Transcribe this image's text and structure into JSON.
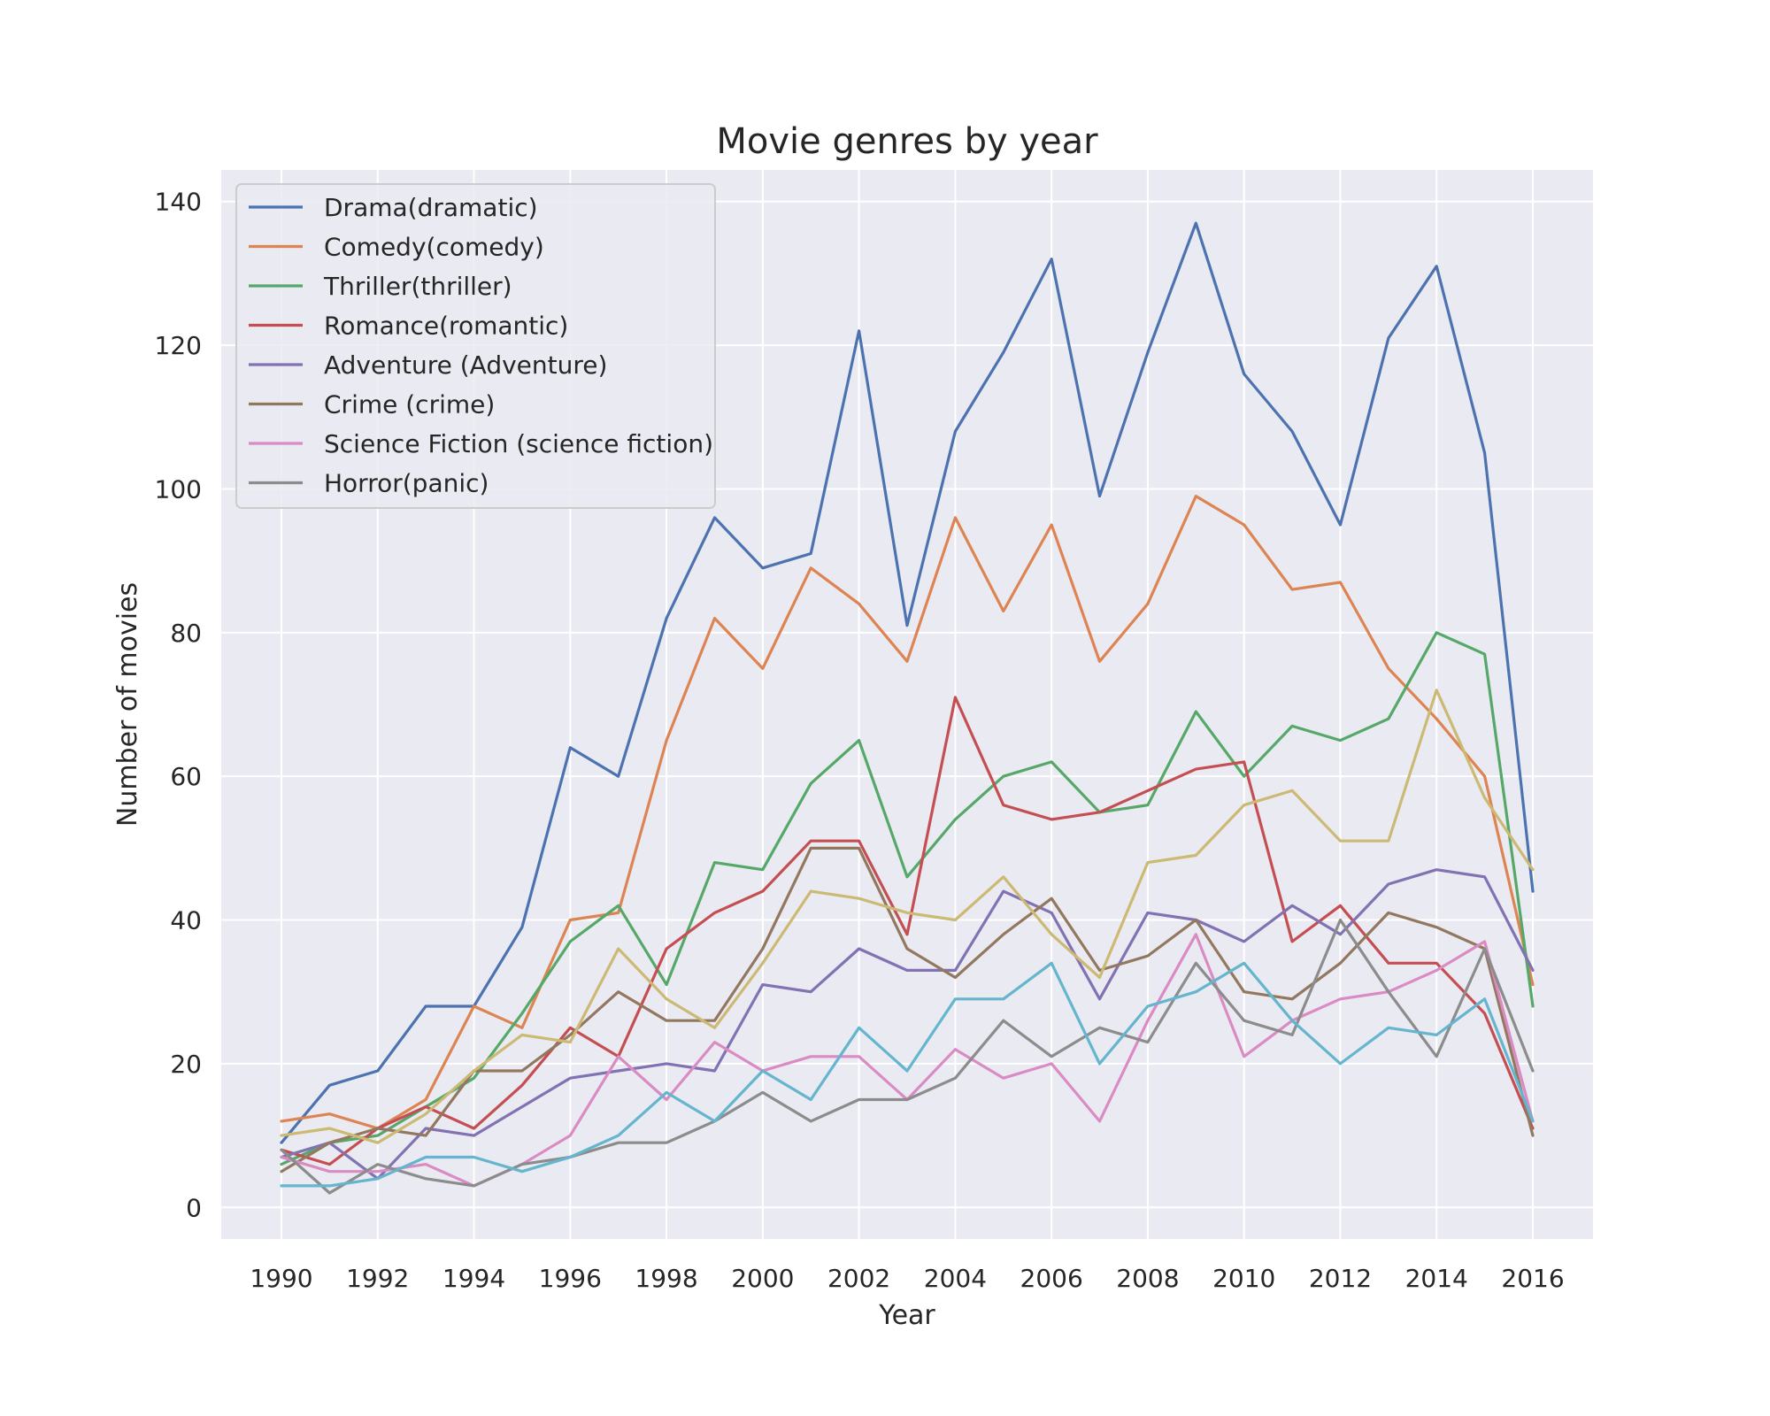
{
  "chart_data": {
    "type": "line",
    "title": "Movie genres by year",
    "xlabel": "Year",
    "ylabel": "Number of movies",
    "xlim": [
      1988.75,
      2017.25
    ],
    "ylim": [
      -4.4,
      144.4
    ],
    "x_ticks": [
      1990,
      1992,
      1994,
      1996,
      1998,
      2000,
      2002,
      2004,
      2006,
      2008,
      2010,
      2012,
      2014,
      2016
    ],
    "y_ticks": [
      0,
      20,
      40,
      60,
      80,
      100,
      120,
      140
    ],
    "grid": true,
    "legend_placement": "upper-left",
    "x": [
      1990,
      1991,
      1992,
      1993,
      1994,
      1995,
      1996,
      1997,
      1998,
      1999,
      2000,
      2001,
      2002,
      2003,
      2004,
      2005,
      2006,
      2007,
      2008,
      2009,
      2010,
      2011,
      2012,
      2013,
      2014,
      2015,
      2016
    ],
    "series": [
      {
        "name": "Drama(dramatic)",
        "color": "#4c72b0",
        "in_legend": true,
        "values": [
          9,
          17,
          19,
          28,
          28,
          39,
          64,
          60,
          82,
          96,
          89,
          91,
          122,
          81,
          108,
          119,
          132,
          99,
          119,
          137,
          116,
          108,
          95,
          121,
          131,
          105,
          44
        ]
      },
      {
        "name": "Comedy(comedy)",
        "color": "#dd8452",
        "in_legend": true,
        "values": [
          12,
          13,
          11,
          15,
          28,
          25,
          40,
          41,
          65,
          82,
          75,
          89,
          84,
          76,
          96,
          83,
          95,
          76,
          84,
          99,
          95,
          86,
          87,
          75,
          68,
          60,
          31
        ]
      },
      {
        "name": "Thriller(thriller)",
        "color": "#55a868",
        "in_legend": true,
        "values": [
          6,
          9,
          10,
          14,
          18,
          27,
          37,
          42,
          31,
          48,
          47,
          59,
          65,
          46,
          54,
          60,
          62,
          55,
          56,
          69,
          60,
          67,
          65,
          68,
          80,
          77,
          28
        ]
      },
      {
        "name": "Romance(romantic)",
        "color": "#c44e52",
        "in_legend": true,
        "values": [
          8,
          6,
          11,
          14,
          11,
          17,
          25,
          21,
          36,
          41,
          44,
          51,
          51,
          38,
          71,
          56,
          54,
          55,
          58,
          61,
          62,
          37,
          42,
          34,
          34,
          27,
          11
        ]
      },
      {
        "name": "Adventure (Adventure)",
        "color": "#8172b3",
        "in_legend": true,
        "values": [
          7,
          9,
          4,
          11,
          10,
          14,
          18,
          19,
          20,
          19,
          31,
          30,
          36,
          33,
          33,
          44,
          41,
          29,
          41,
          40,
          37,
          42,
          38,
          45,
          47,
          46,
          33
        ]
      },
      {
        "name": "Crime (crime)",
        "color": "#937860",
        "in_legend": true,
        "values": [
          5,
          9,
          11,
          10,
          19,
          19,
          24,
          30,
          26,
          26,
          36,
          50,
          50,
          36,
          32,
          38,
          43,
          33,
          35,
          40,
          30,
          29,
          34,
          41,
          39,
          36,
          10
        ]
      },
      {
        "name": "Science Fiction (science fiction)",
        "color": "#da8bc3",
        "in_legend": true,
        "values": [
          7,
          5,
          5,
          6,
          3,
          6,
          10,
          21,
          15,
          23,
          19,
          21,
          21,
          15,
          22,
          18,
          20,
          12,
          26,
          38,
          21,
          26,
          29,
          30,
          33,
          37,
          12
        ]
      },
      {
        "name": "Horror(panic)",
        "color": "#8c8c8c",
        "in_legend": true,
        "values": [
          8,
          2,
          6,
          4,
          3,
          6,
          7,
          9,
          9,
          12,
          16,
          12,
          15,
          15,
          18,
          26,
          21,
          25,
          23,
          34,
          26,
          24,
          40,
          30,
          21,
          36,
          19
        ]
      },
      {
        "name": "",
        "color": "#ccb974",
        "in_legend": false,
        "values": [
          10,
          11,
          9,
          13,
          19,
          24,
          23,
          36,
          29,
          25,
          34,
          44,
          43,
          41,
          40,
          46,
          38,
          32,
          48,
          49,
          56,
          58,
          51,
          51,
          72,
          57,
          47
        ]
      },
      {
        "name": "",
        "color": "#64b5cd",
        "in_legend": false,
        "values": [
          3,
          3,
          4,
          7,
          7,
          5,
          7,
          10,
          16,
          12,
          19,
          15,
          25,
          19,
          29,
          29,
          34,
          20,
          28,
          30,
          34,
          26,
          20,
          25,
          24,
          29,
          12
        ]
      }
    ]
  }
}
